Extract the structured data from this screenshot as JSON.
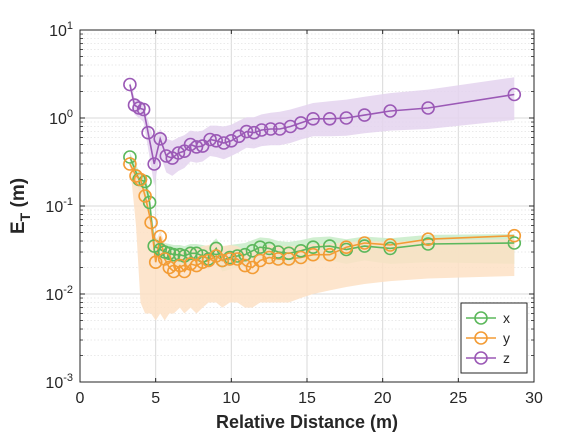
{
  "chart_data": {
    "type": "line",
    "xlabel": "Relative Distance (m)",
    "ylabel": {
      "main": "E",
      "sub": "T",
      "unit": " (m)"
    },
    "xlim": [
      0,
      30
    ],
    "ylim": [
      0.001,
      10
    ],
    "yscale": "log",
    "grid": true,
    "legend_position": "bottom-right",
    "x_ticks": [
      {
        "value": 0,
        "label": "0"
      },
      {
        "value": 5,
        "label": "5"
      },
      {
        "value": 10,
        "label": "10"
      },
      {
        "value": 15,
        "label": "15"
      },
      {
        "value": 20,
        "label": "20"
      },
      {
        "value": 25,
        "label": "25"
      },
      {
        "value": 30,
        "label": "30"
      }
    ],
    "y_ticks": [
      {
        "value": 0.001,
        "base": "10",
        "exp": "-3"
      },
      {
        "value": 0.01,
        "base": "10",
        "exp": "-2"
      },
      {
        "value": 0.1,
        "base": "10",
        "exp": "-1"
      },
      {
        "value": 1,
        "base": "10",
        "exp": "0"
      },
      {
        "value": 10,
        "base": "10",
        "exp": "1"
      }
    ],
    "series": [
      {
        "name": "x",
        "color": "#5cb85c",
        "fill": "#c8ecc8",
        "x": [
          3.3,
          3.9,
          4.3,
          4.6,
          4.9,
          5.3,
          5.6,
          5.9,
          6.2,
          6.6,
          6.9,
          7.3,
          7.7,
          8.1,
          8.5,
          9.0,
          9.4,
          9.9,
          10.4,
          10.9,
          11.4,
          11.9,
          12.5,
          13.1,
          13.8,
          14.6,
          15.4,
          16.5,
          17.6,
          18.8,
          20.5,
          23.0,
          28.7
        ],
        "y": [
          0.36,
          0.2,
          0.19,
          0.11,
          0.035,
          0.032,
          0.03,
          0.029,
          0.028,
          0.028,
          0.027,
          0.029,
          0.029,
          0.027,
          0.025,
          0.033,
          0.024,
          0.026,
          0.027,
          0.028,
          0.031,
          0.034,
          0.033,
          0.03,
          0.029,
          0.031,
          0.034,
          0.035,
          0.032,
          0.035,
          0.033,
          0.037,
          0.038
        ],
        "band_upper": [
          0.4,
          0.25,
          0.22,
          0.14,
          0.045,
          0.04,
          0.038,
          0.037,
          0.036,
          0.036,
          0.035,
          0.037,
          0.037,
          0.036,
          0.035,
          0.043,
          0.034,
          0.036,
          0.037,
          0.038,
          0.041,
          0.044,
          0.043,
          0.04,
          0.039,
          0.041,
          0.044,
          0.045,
          0.042,
          0.045,
          0.043,
          0.047,
          0.048
        ],
        "band_lower": [
          0.3,
          0.15,
          0.12,
          0.07,
          0.025,
          0.023,
          0.022,
          0.021,
          0.021,
          0.021,
          0.02,
          0.021,
          0.021,
          0.02,
          0.019,
          0.024,
          0.018,
          0.019,
          0.02,
          0.02,
          0.022,
          0.024,
          0.023,
          0.021,
          0.021,
          0.022,
          0.024,
          0.024,
          0.022,
          0.024,
          0.022,
          0.023,
          0.022
        ]
      },
      {
        "name": "y",
        "color": "#f39c35",
        "fill": "#fde0c4",
        "x": [
          3.3,
          3.7,
          4.0,
          4.3,
          4.7,
          5.0,
          5.3,
          5.6,
          5.9,
          6.2,
          6.6,
          6.9,
          7.3,
          7.7,
          8.1,
          8.5,
          9.0,
          9.4,
          9.9,
          10.4,
          10.9,
          11.4,
          11.9,
          12.5,
          13.1,
          13.8,
          14.6,
          15.4,
          16.5,
          17.6,
          18.8,
          20.5,
          23.0,
          28.7
        ],
        "y": [
          0.3,
          0.22,
          0.2,
          0.13,
          0.065,
          0.023,
          0.045,
          0.025,
          0.02,
          0.018,
          0.021,
          0.018,
          0.022,
          0.021,
          0.023,
          0.024,
          0.027,
          0.024,
          0.025,
          0.025,
          0.021,
          0.02,
          0.024,
          0.026,
          0.025,
          0.025,
          0.026,
          0.028,
          0.028,
          0.034,
          0.038,
          0.036,
          0.042,
          0.046
        ],
        "band_upper": [
          0.31,
          0.25,
          0.21,
          0.15,
          0.09,
          0.04,
          0.052,
          0.038,
          0.033,
          0.03,
          0.033,
          0.03,
          0.034,
          0.033,
          0.035,
          0.036,
          0.038,
          0.035,
          0.036,
          0.035,
          0.031,
          0.03,
          0.034,
          0.036,
          0.035,
          0.035,
          0.035,
          0.037,
          0.037,
          0.039,
          0.04,
          0.039,
          0.041,
          0.042
        ],
        "band_lower": [
          0.3,
          0.06,
          0.008,
          0.006,
          0.006,
          0.005,
          0.006,
          0.005,
          0.006,
          0.006,
          0.007,
          0.006,
          0.007,
          0.006,
          0.007,
          0.008,
          0.008,
          0.007,
          0.008,
          0.008,
          0.007,
          0.007,
          0.008,
          0.008,
          0.008,
          0.008,
          0.009,
          0.01,
          0.011,
          0.012,
          0.013,
          0.014,
          0.015,
          0.016
        ]
      },
      {
        "name": "z",
        "color": "#9b59b6",
        "fill": "#e4d3ef",
        "x": [
          3.3,
          3.6,
          3.9,
          4.2,
          4.5,
          4.9,
          5.3,
          5.7,
          6.1,
          6.5,
          6.9,
          7.3,
          7.7,
          8.1,
          8.6,
          9.0,
          9.5,
          10.0,
          10.5,
          11.0,
          11.5,
          12.0,
          12.6,
          13.2,
          13.9,
          14.6,
          15.4,
          16.5,
          17.6,
          18.8,
          20.5,
          23.0,
          28.7
        ],
        "y": [
          2.4,
          1.4,
          1.3,
          1.25,
          0.68,
          0.3,
          0.58,
          0.37,
          0.35,
          0.4,
          0.42,
          0.5,
          0.47,
          0.48,
          0.57,
          0.55,
          0.52,
          0.55,
          0.62,
          0.7,
          0.68,
          0.73,
          0.75,
          0.75,
          0.8,
          0.88,
          0.98,
          0.98,
          1.0,
          1.08,
          1.2,
          1.3,
          1.85
        ],
        "band_upper": [
          2.6,
          1.7,
          1.55,
          1.45,
          0.95,
          0.55,
          0.75,
          0.58,
          0.55,
          0.6,
          0.64,
          0.72,
          0.7,
          0.72,
          0.82,
          0.82,
          0.8,
          0.84,
          0.93,
          1.02,
          1.02,
          1.1,
          1.15,
          1.18,
          1.25,
          1.35,
          1.48,
          1.55,
          1.62,
          1.74,
          1.92,
          2.1,
          2.9
        ],
        "band_lower": [
          2.2,
          1.1,
          1.0,
          0.9,
          0.45,
          0.17,
          0.38,
          0.24,
          0.22,
          0.25,
          0.27,
          0.32,
          0.31,
          0.32,
          0.37,
          0.36,
          0.34,
          0.37,
          0.41,
          0.46,
          0.45,
          0.48,
          0.49,
          0.49,
          0.52,
          0.57,
          0.62,
          0.62,
          0.63,
          0.67,
          0.72,
          0.75,
          0.95
        ]
      }
    ]
  }
}
